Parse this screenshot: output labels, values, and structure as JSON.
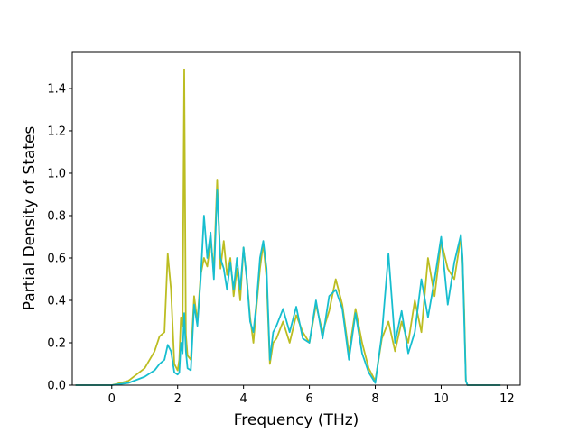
{
  "chart_data": {
    "type": "line",
    "title": "",
    "xlabel": "Frequency (THz)",
    "ylabel": "Partial Density of States",
    "xlim": [
      -1.2,
      12.4
    ],
    "ylim": [
      0.0,
      1.57
    ],
    "xticks": [
      0,
      2,
      4,
      6,
      8,
      10,
      12
    ],
    "yticks": [
      0.0,
      0.2,
      0.4,
      0.6,
      0.8,
      1.0,
      1.2,
      1.4
    ],
    "xtick_labels": [
      "0",
      "2",
      "4",
      "6",
      "8",
      "10",
      "12"
    ],
    "ytick_labels": [
      "0.0",
      "0.2",
      "0.4",
      "0.6",
      "0.8",
      "1.0",
      "1.2",
      "1.4"
    ],
    "grid": false,
    "legend": "none",
    "series": [
      {
        "color": "#bcbd22",
        "x": [
          -1.1,
          0.0,
          0.5,
          1.0,
          1.3,
          1.45,
          1.6,
          1.7,
          1.8,
          1.9,
          2.0,
          2.05,
          2.1,
          2.15,
          2.2,
          2.25,
          2.3,
          2.4,
          2.5,
          2.6,
          2.7,
          2.8,
          2.9,
          3.0,
          3.1,
          3.2,
          3.3,
          3.4,
          3.5,
          3.6,
          3.7,
          3.8,
          3.9,
          4.0,
          4.1,
          4.2,
          4.3,
          4.4,
          4.5,
          4.6,
          4.7,
          4.8,
          4.9,
          5.0,
          5.2,
          5.4,
          5.6,
          5.8,
          6.0,
          6.2,
          6.4,
          6.6,
          6.8,
          7.0,
          7.2,
          7.4,
          7.6,
          7.8,
          8.0,
          8.2,
          8.4,
          8.6,
          8.8,
          9.0,
          9.2,
          9.4,
          9.6,
          9.8,
          10.0,
          10.2,
          10.4,
          10.6,
          10.65,
          10.7,
          10.75,
          10.8,
          11.8
        ],
        "y": [
          0.0,
          0.0,
          0.02,
          0.08,
          0.16,
          0.23,
          0.25,
          0.62,
          0.45,
          0.1,
          0.07,
          0.12,
          0.32,
          0.28,
          1.49,
          0.24,
          0.14,
          0.12,
          0.42,
          0.3,
          0.52,
          0.6,
          0.56,
          0.68,
          0.55,
          0.97,
          0.55,
          0.68,
          0.52,
          0.6,
          0.42,
          0.55,
          0.4,
          0.65,
          0.5,
          0.32,
          0.2,
          0.38,
          0.55,
          0.67,
          0.5,
          0.1,
          0.2,
          0.22,
          0.3,
          0.2,
          0.33,
          0.25,
          0.2,
          0.38,
          0.25,
          0.35,
          0.5,
          0.38,
          0.15,
          0.36,
          0.2,
          0.08,
          0.02,
          0.22,
          0.3,
          0.16,
          0.3,
          0.2,
          0.4,
          0.25,
          0.6,
          0.42,
          0.68,
          0.55,
          0.5,
          0.7,
          0.58,
          0.35,
          0.02,
          0.0,
          0.0
        ]
      },
      {
        "color": "#17becf",
        "x": [
          -1.1,
          0.0,
          0.5,
          1.0,
          1.3,
          1.45,
          1.6,
          1.7,
          1.8,
          1.9,
          2.0,
          2.05,
          2.1,
          2.15,
          2.2,
          2.25,
          2.3,
          2.4,
          2.5,
          2.6,
          2.7,
          2.8,
          2.9,
          3.0,
          3.1,
          3.2,
          3.3,
          3.4,
          3.5,
          3.6,
          3.7,
          3.8,
          3.9,
          4.0,
          4.1,
          4.2,
          4.3,
          4.4,
          4.5,
          4.6,
          4.7,
          4.8,
          4.9,
          5.0,
          5.2,
          5.4,
          5.6,
          5.8,
          6.0,
          6.2,
          6.4,
          6.6,
          6.8,
          7.0,
          7.2,
          7.4,
          7.6,
          7.8,
          8.0,
          8.2,
          8.4,
          8.6,
          8.8,
          9.0,
          9.2,
          9.4,
          9.6,
          9.8,
          10.0,
          10.2,
          10.4,
          10.6,
          10.65,
          10.7,
          10.75,
          10.8,
          11.8
        ],
        "y": [
          0.0,
          0.0,
          0.01,
          0.04,
          0.07,
          0.1,
          0.12,
          0.19,
          0.16,
          0.06,
          0.05,
          0.06,
          0.2,
          0.15,
          0.34,
          0.16,
          0.08,
          0.07,
          0.38,
          0.28,
          0.5,
          0.8,
          0.6,
          0.72,
          0.5,
          0.92,
          0.6,
          0.55,
          0.45,
          0.58,
          0.45,
          0.6,
          0.45,
          0.65,
          0.5,
          0.3,
          0.25,
          0.4,
          0.6,
          0.68,
          0.55,
          0.12,
          0.25,
          0.28,
          0.36,
          0.25,
          0.37,
          0.22,
          0.2,
          0.4,
          0.22,
          0.42,
          0.45,
          0.36,
          0.12,
          0.34,
          0.15,
          0.06,
          0.01,
          0.24,
          0.62,
          0.2,
          0.35,
          0.15,
          0.25,
          0.5,
          0.32,
          0.5,
          0.7,
          0.38,
          0.58,
          0.71,
          0.6,
          0.3,
          0.02,
          0.0,
          0.0
        ]
      }
    ]
  }
}
